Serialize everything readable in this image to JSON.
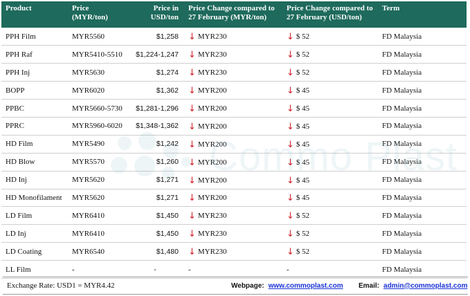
{
  "colors": {
    "header_bg": "#1e6a5c",
    "arrow": "#d0202a",
    "link": "#1a33d6"
  },
  "watermark": {
    "text": "Commo Plast"
  },
  "headers": {
    "product": "Product",
    "price_myr_1": "Price",
    "price_myr_2": "(MYR/ton)",
    "price_usd_1": "Price in",
    "price_usd_2": "USD/ton",
    "change_myr_1": "Price Change compared to",
    "change_myr_2": "27 February (MYR/ton)",
    "change_usd_1": "Price Change compared to",
    "change_usd_2": "27 February (USD/ton)",
    "term": "Term"
  },
  "rows": [
    {
      "product": "PPH Film",
      "myr": "MYR5560",
      "usd": "$1,258",
      "chg_myr": "MYR230",
      "chg_usd": "$ 52",
      "term": "FD Malaysia",
      "arrow": true
    },
    {
      "product": "PPH Raf",
      "myr": "MYR5410-5510",
      "usd": "$1,224-1,247",
      "chg_myr": "MYR230",
      "chg_usd": "$ 52",
      "term": "FD Malaysia",
      "arrow": true
    },
    {
      "product": "PPH Inj",
      "myr": "MYR5630",
      "usd": "$1,274",
      "chg_myr": "MYR230",
      "chg_usd": "$ 52",
      "term": "FD Malaysia",
      "arrow": true
    },
    {
      "product": "BOPP",
      "myr": "MYR6020",
      "usd": "$1,362",
      "chg_myr": "MYR200",
      "chg_usd": "$ 45",
      "term": "FD Malaysia",
      "arrow": true
    },
    {
      "product": "PPBC",
      "myr": "MYR5660-5730",
      "usd": "$1,281-1,296",
      "chg_myr": "MYR200",
      "chg_usd": "$ 45",
      "term": "FD Malaysia",
      "arrow": true
    },
    {
      "product": "PPRC",
      "myr": "MYR5960-6020",
      "usd": "$1,348-1,362",
      "chg_myr": "MYR200",
      "chg_usd": "$ 45",
      "term": "FD Malaysia",
      "arrow": true
    },
    {
      "product": "HD Film",
      "myr": "MYR5490",
      "usd": "$1,242",
      "chg_myr": "MYR200",
      "chg_usd": "$ 45",
      "term": "FD Malaysia",
      "arrow": true
    },
    {
      "product": "HD Blow",
      "myr": "MYR5570",
      "usd": "$1,260",
      "chg_myr": "MYR200",
      "chg_usd": "$ 45",
      "term": "FD Malaysia",
      "arrow": true
    },
    {
      "product": "HD Inj",
      "myr": "MYR5620",
      "usd": "$1,271",
      "chg_myr": "MYR200",
      "chg_usd": "$ 45",
      "term": "FD Malaysia",
      "arrow": true
    },
    {
      "product": "HD Monofilament",
      "myr": "MYR5620",
      "usd": "$1,271",
      "chg_myr": "MYR200",
      "chg_usd": "$ 45",
      "term": "FD Malaysia",
      "arrow": true
    },
    {
      "product": "LD Film",
      "myr": "MYR6410",
      "usd": "$1,450",
      "chg_myr": "MYR230",
      "chg_usd": "$ 52",
      "term": "FD Malaysia",
      "arrow": true
    },
    {
      "product": "LD Inj",
      "myr": "MYR6410",
      "usd": "$1,450",
      "chg_myr": "MYR230",
      "chg_usd": "$ 52",
      "term": "FD Malaysia",
      "arrow": true
    },
    {
      "product": "LD Coating",
      "myr": "MYR6540",
      "usd": "$1,480",
      "chg_myr": "MYR230",
      "chg_usd": "$ 52",
      "term": "FD Malaysia",
      "arrow": true
    },
    {
      "product": "LL Film",
      "myr": "-",
      "usd": "-",
      "chg_myr": "-",
      "chg_usd": "-",
      "term": "FD Malaysia",
      "arrow": false
    }
  ],
  "footer": {
    "exchange_rate": "Exchange Rate: USD1 = MYR4.42",
    "webpage_label": "Webpage:",
    "webpage_link": "www.commoplast.com",
    "email_label": "Email:",
    "email_link": "admin@commoplast.com"
  }
}
